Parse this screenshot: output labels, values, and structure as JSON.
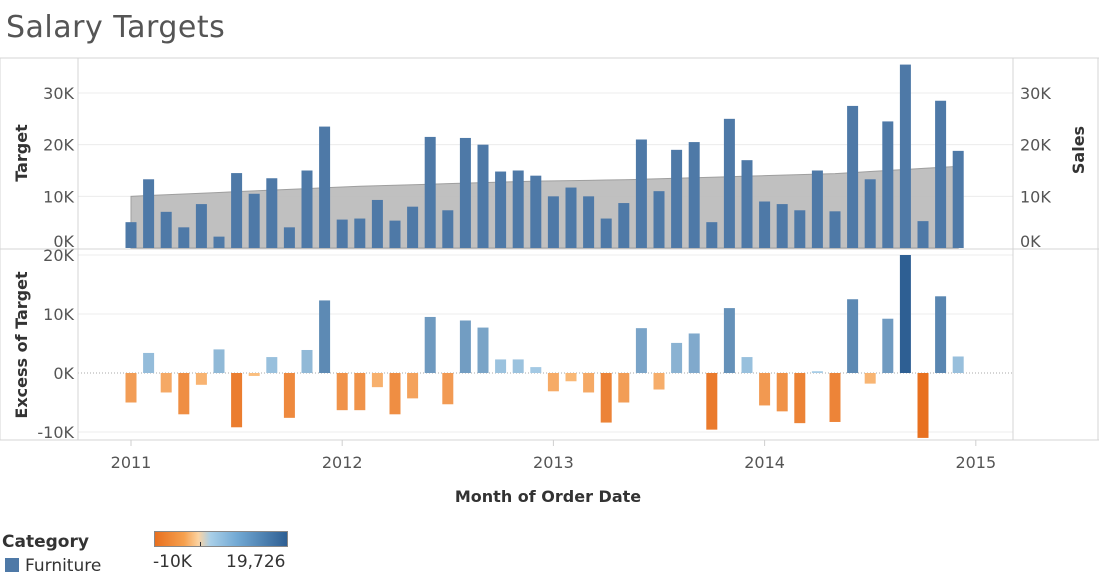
{
  "title": "Salary Targets",
  "colors": {
    "bar_blue": "#4e79a7",
    "target_band": "#bdbdbd",
    "positive_light": "#a9cfe8",
    "positive_dark": "#2e5f93",
    "negative_light": "#fbc283",
    "negative_dark": "#e8701f"
  },
  "chart_data": [
    {
      "type": "bar",
      "pane": "top",
      "ylabel_left": "Target",
      "ylabel_right": "Sales",
      "ylim": [
        0,
        36000
      ],
      "yticks": [
        {
          "v": 0,
          "label": "0K"
        },
        {
          "v": 10000,
          "label": "10K"
        },
        {
          "v": 20000,
          "label": "20K"
        },
        {
          "v": 30000,
          "label": "30K"
        }
      ],
      "series": [
        {
          "name": "Sales",
          "values": [
            5000,
            13300,
            7000,
            4000,
            8500,
            2200,
            14500,
            10500,
            13500,
            4000,
            15000,
            23500,
            5500,
            5700,
            9300,
            5300,
            8000,
            21500,
            7300,
            21300,
            20000,
            14800,
            15000,
            14000,
            10000,
            11700,
            10000,
            5700,
            8700,
            21000,
            11000,
            19000,
            20500,
            5000,
            25000,
            17000,
            9000,
            8500,
            7300,
            15000,
            7100,
            27500,
            13300,
            24500,
            35500,
            5200,
            28500,
            18800
          ]
        },
        {
          "name": "Target",
          "type": "area",
          "values": [
            10000,
            10150,
            10300,
            10450,
            10600,
            10750,
            10900,
            11050,
            11200,
            11350,
            11500,
            11650,
            11800,
            11950,
            12050,
            12150,
            12250,
            12350,
            12450,
            12550,
            12650,
            12750,
            12850,
            12950,
            13000,
            13050,
            13100,
            13150,
            13200,
            13300,
            13400,
            13500,
            13600,
            13700,
            13800,
            13900,
            14000,
            14100,
            14200,
            14300,
            14400,
            14600,
            14800,
            15000,
            15200,
            15400,
            15600,
            15800
          ]
        }
      ]
    },
    {
      "type": "bar",
      "pane": "bottom",
      "ylabel": "Excess of Target",
      "ylim": [
        -11000,
        22000
      ],
      "yticks": [
        {
          "v": -10000,
          "label": "-10K"
        },
        {
          "v": 0,
          "label": "0K"
        },
        {
          "v": 10000,
          "label": "10K"
        },
        {
          "v": 20000,
          "label": "20K"
        }
      ],
      "series": [
        {
          "name": "Excess of Target",
          "values": [
            -5000,
            3400,
            -3300,
            -7000,
            -2000,
            4000,
            -9200,
            -500,
            2700,
            -7600,
            3900,
            12300,
            -6300,
            -6300,
            -2400,
            -7000,
            -4300,
            9500,
            -5300,
            8900,
            7700,
            2300,
            2300,
            1000,
            -3100,
            -1400,
            -3300,
            -8400,
            -5000,
            7600,
            -2800,
            5100,
            6700,
            -9600,
            11000,
            2700,
            -5500,
            -6500,
            -8500,
            300,
            -8300,
            12500,
            -1800,
            9200,
            20000,
            -11000,
            13000,
            2800
          ]
        }
      ]
    },
    {
      "type": "axis",
      "xlabel": "Month of Order Date",
      "xticks": [
        "2011",
        "2012",
        "2013",
        "2014",
        "2015"
      ],
      "x_start": "2011-01",
      "months": 48
    }
  ],
  "legend": {
    "category_title": "Category",
    "category_item": "Furniture",
    "ramp_min": "-10K",
    "ramp_max": "19,726"
  }
}
